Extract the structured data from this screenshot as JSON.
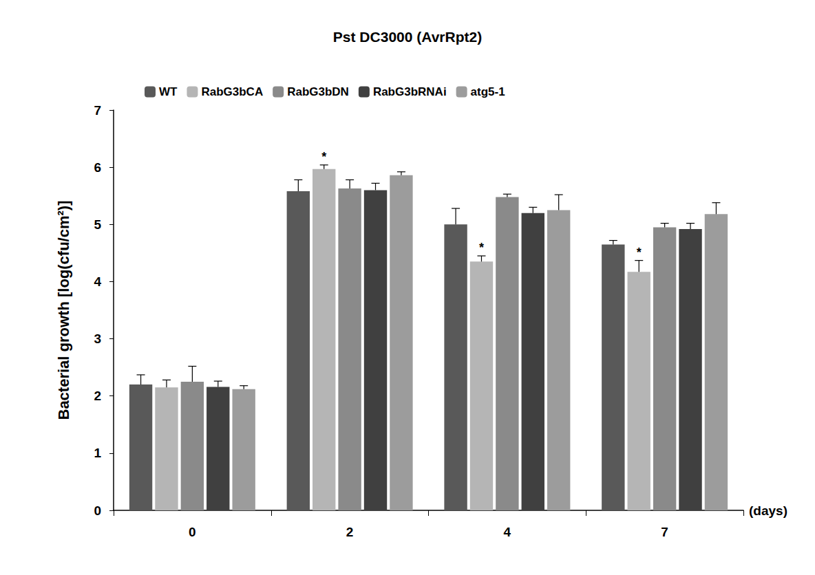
{
  "chart_data": {
    "type": "bar",
    "title": "Pst DC3000 (AvrRpt2)",
    "x_label": "(days)",
    "y_label": "Bacterial growth [log(cfu/cm²)]",
    "categories": [
      "0",
      "2",
      "4",
      "7"
    ],
    "ylim": [
      0,
      7
    ],
    "yticks": [
      0,
      1,
      2,
      3,
      4,
      5,
      6,
      7
    ],
    "grid": false,
    "legend": "top",
    "series": [
      {
        "name": "WT",
        "color": "#595959",
        "values": [
          2.2,
          5.58,
          5.0,
          4.65
        ],
        "error": [
          0.17,
          0.2,
          0.28,
          0.07
        ],
        "annotations": [
          null,
          null,
          null,
          null
        ]
      },
      {
        "name": "RabG3bCA",
        "color": "#b5b5b5",
        "values": [
          2.15,
          5.97,
          4.35,
          4.17
        ],
        "error": [
          0.13,
          0.07,
          0.1,
          0.2
        ],
        "annotations": [
          null,
          "*",
          "*",
          "*"
        ]
      },
      {
        "name": "RabG3bDN",
        "color": "#8a8a8a",
        "values": [
          2.25,
          5.63,
          5.48,
          4.95
        ],
        "error": [
          0.27,
          0.15,
          0.05,
          0.07
        ],
        "annotations": [
          null,
          null,
          null,
          null
        ]
      },
      {
        "name": "RabG3bRNAi",
        "color": "#404040",
        "values": [
          2.16,
          5.6,
          5.2,
          4.92
        ],
        "error": [
          0.1,
          0.12,
          0.1,
          0.1
        ],
        "annotations": [
          null,
          null,
          null,
          null
        ]
      },
      {
        "name": "atg5-1",
        "color": "#9c9c9c",
        "values": [
          2.12,
          5.86,
          5.25,
          5.18
        ],
        "error": [
          0.06,
          0.06,
          0.27,
          0.2
        ],
        "annotations": [
          null,
          null,
          null,
          null
        ]
      }
    ]
  }
}
